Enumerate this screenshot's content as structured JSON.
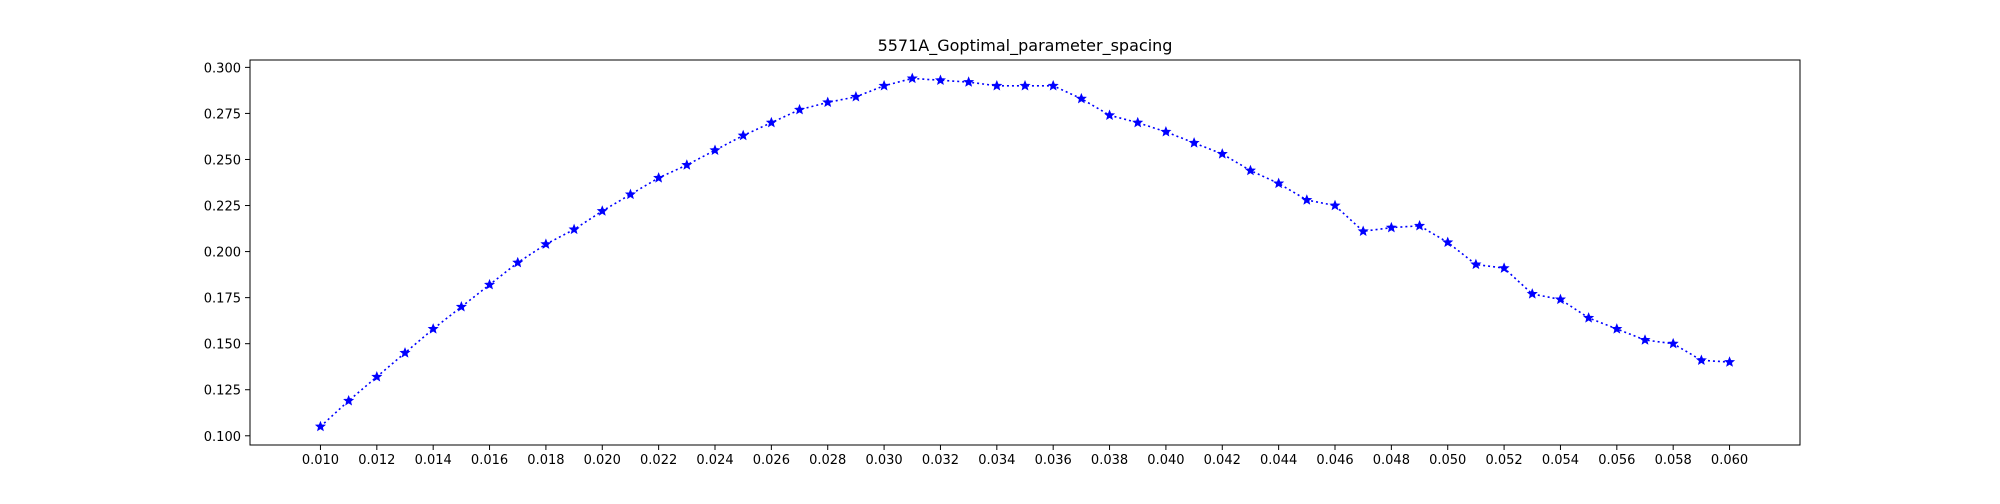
{
  "chart_data": {
    "type": "line",
    "title": "5571A_Goptimal_parameter_spacing",
    "xlabel": "",
    "ylabel": "",
    "xlim": [
      0.0075,
      0.0625
    ],
    "ylim": [
      0.095,
      0.304
    ],
    "xticks": [
      0.01,
      0.012,
      0.014,
      0.016,
      0.018,
      0.02,
      0.022,
      0.024,
      0.026,
      0.028,
      0.03,
      0.032,
      0.034,
      0.036,
      0.038,
      0.04,
      0.042,
      0.044,
      0.046,
      0.048,
      0.05,
      0.052,
      0.054,
      0.056,
      0.058,
      0.06
    ],
    "xtick_labels": [
      "0.010",
      "0.012",
      "0.014",
      "0.016",
      "0.018",
      "0.020",
      "0.022",
      "0.024",
      "0.026",
      "0.028",
      "0.030",
      "0.032",
      "0.034",
      "0.036",
      "0.038",
      "0.040",
      "0.042",
      "0.044",
      "0.046",
      "0.048",
      "0.050",
      "0.052",
      "0.054",
      "0.056",
      "0.058",
      "0.060"
    ],
    "yticks": [
      0.1,
      0.125,
      0.15,
      0.175,
      0.2,
      0.225,
      0.25,
      0.275,
      0.3
    ],
    "ytick_labels": [
      "0.100",
      "0.125",
      "0.150",
      "0.175",
      "0.200",
      "0.225",
      "0.250",
      "0.275",
      "0.300"
    ],
    "grid": false,
    "series": [
      {
        "color": "#0000ff",
        "line_style": "dotted",
        "marker": "star",
        "x": [
          0.01,
          0.011,
          0.012,
          0.013,
          0.014,
          0.015,
          0.016,
          0.017,
          0.018,
          0.019,
          0.02,
          0.021,
          0.022,
          0.023,
          0.024,
          0.025,
          0.026,
          0.027,
          0.028,
          0.029,
          0.03,
          0.031,
          0.032,
          0.033,
          0.034,
          0.035,
          0.036,
          0.037,
          0.038,
          0.039,
          0.04,
          0.041,
          0.042,
          0.043,
          0.044,
          0.045,
          0.046,
          0.047,
          0.048,
          0.049,
          0.05,
          0.051,
          0.052,
          0.053,
          0.054,
          0.055,
          0.056,
          0.057,
          0.058,
          0.059,
          0.06
        ],
        "y": [
          0.105,
          0.119,
          0.132,
          0.145,
          0.158,
          0.17,
          0.182,
          0.194,
          0.204,
          0.212,
          0.222,
          0.231,
          0.24,
          0.247,
          0.255,
          0.263,
          0.27,
          0.277,
          0.281,
          0.284,
          0.29,
          0.294,
          0.293,
          0.292,
          0.29,
          0.29,
          0.29,
          0.283,
          0.274,
          0.27,
          0.265,
          0.259,
          0.253,
          0.244,
          0.237,
          0.228,
          0.225,
          0.211,
          0.213,
          0.214,
          0.205,
          0.193,
          0.191,
          0.177,
          0.174,
          0.164,
          0.158,
          0.152,
          0.15,
          0.141,
          0.14
        ]
      }
    ]
  }
}
